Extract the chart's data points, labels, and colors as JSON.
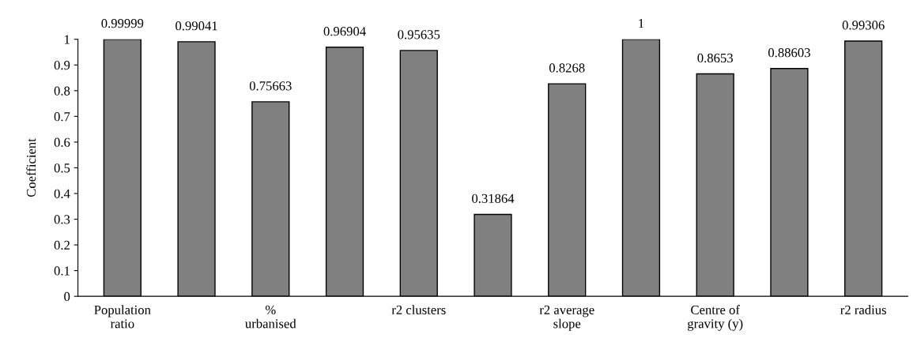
{
  "chart_data": {
    "type": "bar",
    "ylabel": "Coefficient",
    "categories": [
      "Population\nratio",
      null,
      "%\nurbanised",
      null,
      "r2 clusters",
      null,
      "r2 average\nslope",
      null,
      "Centre of\ngravity (y)",
      null,
      "r2 radius"
    ],
    "values": [
      0.99999,
      0.99041,
      0.75663,
      0.96904,
      0.95635,
      0.31864,
      0.8268,
      1,
      0.8653,
      0.88603,
      0.99306
    ],
    "color": "#808080",
    "ylim": [
      0,
      1
    ],
    "yticks": [
      0,
      0.1,
      0.2,
      0.3,
      0.4,
      0.5,
      0.6,
      0.7,
      0.8,
      0.9,
      1
    ],
    "data_labels": true,
    "grid": false,
    "legend": false
  }
}
